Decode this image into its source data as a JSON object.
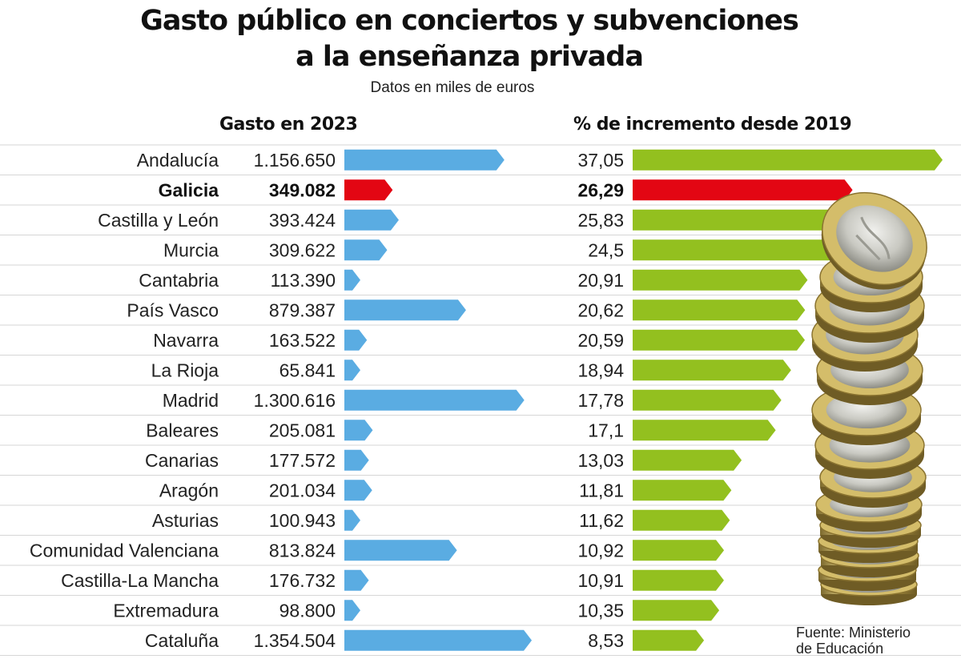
{
  "title": {
    "line1": "Gasto público en conciertos y subvenciones",
    "line2": "a la enseñanza privada"
  },
  "subtitle": "Datos en miles de euros",
  "source": {
    "line1": "Fuente: Ministerio",
    "line2": "de Educación"
  },
  "colors": {
    "blue": "#5aace2",
    "green": "#93c01f",
    "highlight": "#e30613",
    "rule": "#d6d6d6"
  },
  "chart_data": {
    "type": "bar",
    "orientation": "horizontal",
    "title": "Gasto público en conciertos y subvenciones a la enseñanza privada",
    "subtitle": "Datos en miles de euros",
    "highlight": "Galicia",
    "categories": [
      {
        "region": "Andalucía",
        "gasto_label": "1.156.650",
        "gasto": 1156650,
        "inc_label": "37,05",
        "incremento": 37.05
      },
      {
        "region": "Galicia",
        "gasto_label": "349.082",
        "gasto": 349082,
        "inc_label": "26,29",
        "incremento": 26.29
      },
      {
        "region": "Castilla y León",
        "gasto_label": "393.424",
        "gasto": 393424,
        "inc_label": "25,83",
        "incremento": 25.83
      },
      {
        "region": "Murcia",
        "gasto_label": "309.622",
        "gasto": 309622,
        "inc_label": "24,5",
        "incremento": 24.5
      },
      {
        "region": "Cantabria",
        "gasto_label": "113.390",
        "gasto": 113390,
        "inc_label": "20,91",
        "incremento": 20.91
      },
      {
        "region": "País Vasco",
        "gasto_label": "879.387",
        "gasto": 879387,
        "inc_label": "20,62",
        "incremento": 20.62
      },
      {
        "region": "Navarra",
        "gasto_label": "163.522",
        "gasto": 163522,
        "inc_label": "20,59",
        "incremento": 20.59
      },
      {
        "region": "La Rioja",
        "gasto_label": "65.841",
        "gasto": 65841,
        "inc_label": "18,94",
        "incremento": 18.94
      },
      {
        "region": "Madrid",
        "gasto_label": "1.300.616",
        "gasto": 1300616,
        "inc_label": "17,78",
        "incremento": 17.78
      },
      {
        "region": "Baleares",
        "gasto_label": "205.081",
        "gasto": 205081,
        "inc_label": "17,1",
        "incremento": 17.1
      },
      {
        "region": "Canarias",
        "gasto_label": "177.572",
        "gasto": 177572,
        "inc_label": "13,03",
        "incremento": 13.03
      },
      {
        "region": "Aragón",
        "gasto_label": "201.034",
        "gasto": 201034,
        "inc_label": "11,81",
        "incremento": 11.81
      },
      {
        "region": "Asturias",
        "gasto_label": "100.943",
        "gasto": 100943,
        "inc_label": "11,62",
        "incremento": 11.62
      },
      {
        "region": "Comunidad Valenciana",
        "gasto_label": "813.824",
        "gasto": 813824,
        "inc_label": "10,92",
        "incremento": 10.92
      },
      {
        "region": "Castilla-La Mancha",
        "gasto_label": "176.732",
        "gasto": 176732,
        "inc_label": "10,91",
        "incremento": 10.91
      },
      {
        "region": "Extremadura",
        "gasto_label": "98.800",
        "gasto": 98800,
        "inc_label": "10,35",
        "incremento": 10.35
      },
      {
        "region": "Cataluña",
        "gasto_label": "1.354.504",
        "gasto": 1354504,
        "inc_label": "8,53",
        "incremento": 8.53
      }
    ],
    "series": [
      {
        "name": "Gasto en 2023",
        "key": "gasto",
        "color": "#5aace2",
        "xlim": [
          0,
          1354504
        ]
      },
      {
        "name": "% de incremento desde 2019",
        "key": "incremento",
        "color": "#93c01f",
        "xlim": [
          0,
          37.05
        ]
      }
    ]
  }
}
